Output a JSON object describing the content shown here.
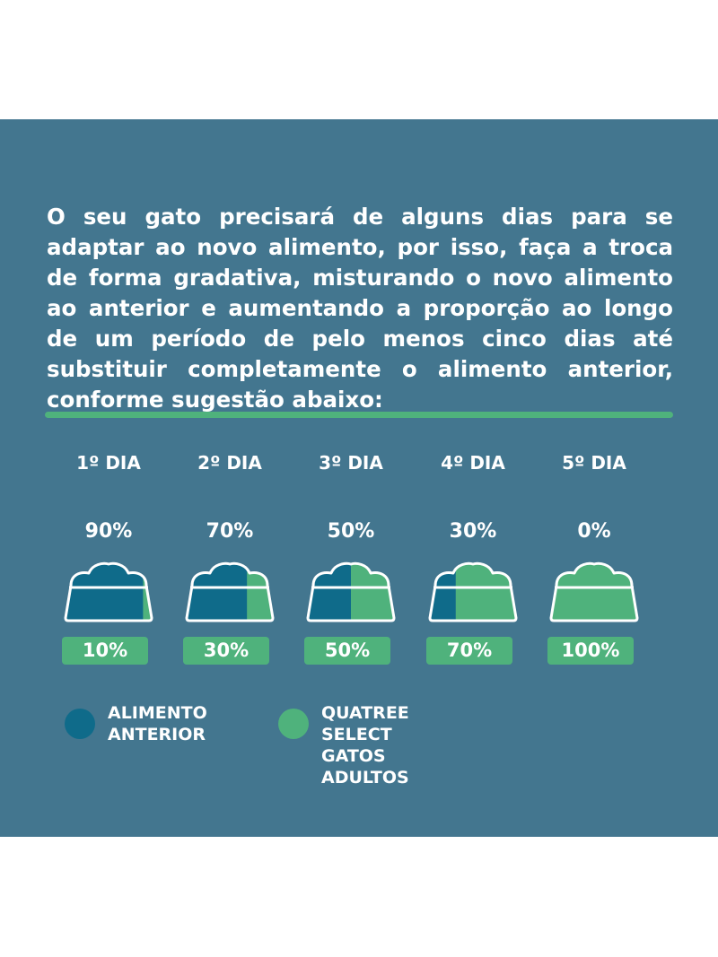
{
  "intro": "O seu gato precisará de alguns dias para se adaptar ao novo alimento, por isso, faça a troca de forma gradativa, misturando o novo alimento ao anterior e aumentando a proporção ao longo de um período de pelo menos cinco dias até substituir completamente o alimento anterior, conforme sugestão abaixo:",
  "colors": {
    "background": "#43768f",
    "previous_food": "#0f6b8a",
    "new_food": "#4fb27c",
    "accent": "#4fb27c"
  },
  "days": [
    {
      "label": "1º DIA",
      "previous_percent": "90%",
      "new_percent": "10%",
      "new_fraction": 0.1
    },
    {
      "label": "2º DIA",
      "previous_percent": "70%",
      "new_percent": "30%",
      "new_fraction": 0.3
    },
    {
      "label": "3º DIA",
      "previous_percent": "50%",
      "new_percent": "50%",
      "new_fraction": 0.5
    },
    {
      "label": "4º DIA",
      "previous_percent": "30%",
      "new_percent": "70%",
      "new_fraction": 0.7
    },
    {
      "label": "5º DIA",
      "previous_percent": "0%",
      "new_percent": "100%",
      "new_fraction": 1.0
    }
  ],
  "legend": {
    "previous": "ALIMENTO\nANTERIOR",
    "new": "QUATREE SELECT GATOS\nADULTOS"
  }
}
